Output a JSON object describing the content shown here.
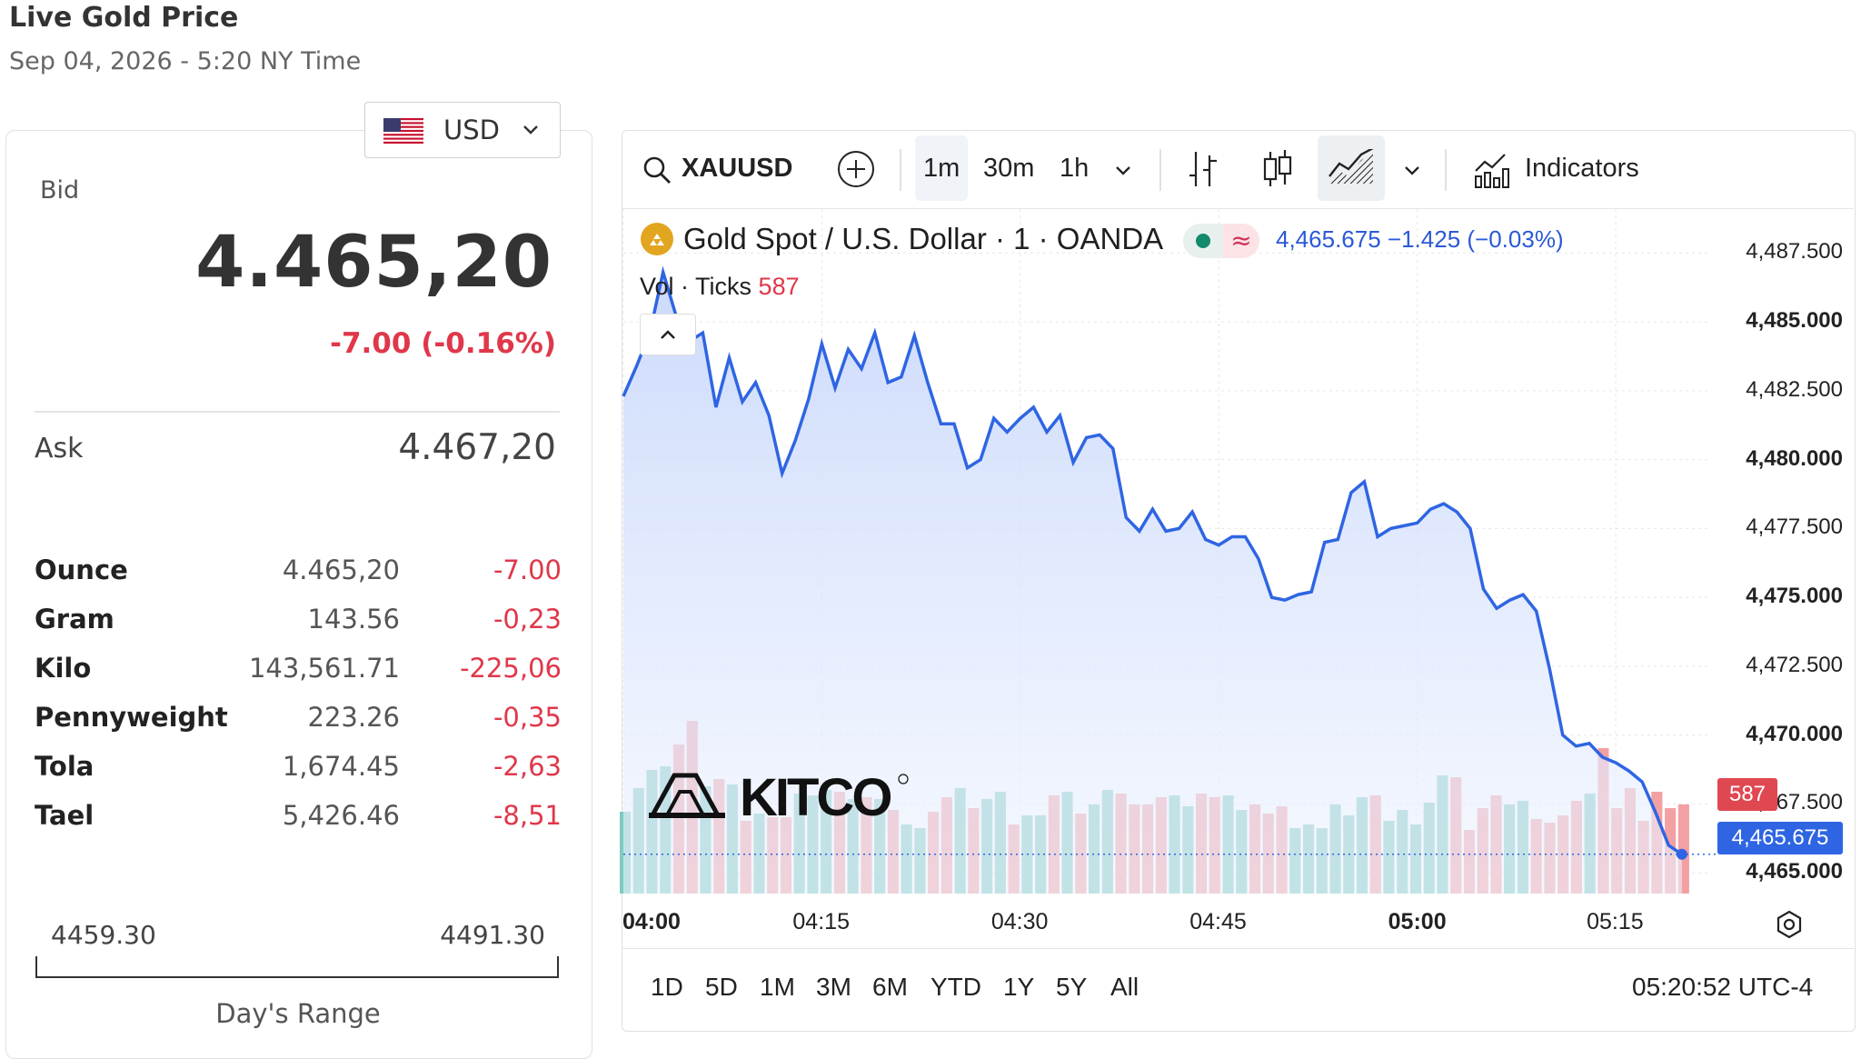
{
  "page": {
    "title": "Live Gold Price",
    "subtitle": "Sep 04, 2026 - 5:20 NY Time"
  },
  "currency": {
    "selected": "USD",
    "flag_icon": "us-flag-icon"
  },
  "quote": {
    "bid_label": "Bid",
    "bid": "4.465,20",
    "change": "-7.00 (-0.16%)",
    "ask_label": "Ask",
    "ask": "4.467,20",
    "down_color": "#e0374a"
  },
  "units": [
    {
      "name": "Ounce",
      "price": "4.465,20",
      "change": "-7.00"
    },
    {
      "name": "Gram",
      "price": "143.56",
      "change": "-0,23"
    },
    {
      "name": "Kilo",
      "price": "143,561.71",
      "change": "-225,06"
    },
    {
      "name": "Pennyweight",
      "price": "223.26",
      "change": "-0,35"
    },
    {
      "name": "Tola",
      "price": "1,674.45",
      "change": "-2,63"
    },
    {
      "name": "Tael",
      "price": "5,426.46",
      "change": "-8,51"
    }
  ],
  "day_range": {
    "low": "4459.30",
    "high": "4491.30",
    "label": "Day's Range"
  },
  "toolbar": {
    "symbol": "XAUUSD",
    "intervals": [
      "1m",
      "30m",
      "1h"
    ],
    "active_interval": "1m",
    "indicators_label": "Indicators"
  },
  "legend": {
    "title": "Gold Spot / U.S. Dollar · 1 · OANDA",
    "last": "4,465.675",
    "change": "−1.425 (−0.03%)",
    "vol_label": "Vol · Ticks",
    "vol_value": "587",
    "line_color": "#2f65e3"
  },
  "ranges": [
    "1D",
    "5D",
    "1M",
    "3M",
    "6M",
    "YTD",
    "1Y",
    "5Y",
    "All"
  ],
  "clock": "05:20:52 UTC-4",
  "logo_text": "KITCO",
  "chart_data": {
    "type": "line",
    "series_main": {
      "name": "XAUUSD",
      "color": "#2f65e3"
    },
    "x_ticks": [
      "04:00",
      "04:15",
      "04:30",
      "04:45",
      "05:00",
      "05:15"
    ],
    "x_ticks_bold": [
      "04:00",
      "05:00"
    ],
    "y_ticks": [
      "4,487.500",
      "4,485.000",
      "4,482.500",
      "4,480.000",
      "4,477.500",
      "4,475.000",
      "4,472.500",
      "4,470.000",
      "4,467.500",
      "4,465.000"
    ],
    "y_ticks_bold": [
      "4,485.000",
      "4,480.000",
      "4,475.000",
      "4,470.000",
      "4,465.000"
    ],
    "ylim": [
      4464.25,
      4488.5
    ],
    "x_range_minutes": [
      0,
      82
    ],
    "prices": [
      4482.3,
      4483.4,
      4484.6,
      4486.8,
      4485.2,
      4484.3,
      4484.6,
      4481.9,
      4483.7,
      4482.1,
      4482.8,
      4481.6,
      4479.5,
      4480.7,
      4482.2,
      4484.2,
      4482.6,
      4484.0,
      4483.3,
      4484.6,
      4482.8,
      4483.0,
      4484.5,
      4482.8,
      4481.3,
      4481.3,
      4479.7,
      4480.0,
      4481.5,
      4481.0,
      4481.5,
      4481.9,
      4481.0,
      4481.6,
      4479.9,
      4480.8,
      4480.9,
      4480.4,
      4477.9,
      4477.4,
      4478.2,
      4477.4,
      4477.5,
      4478.1,
      4477.1,
      4476.9,
      4477.2,
      4477.2,
      4476.4,
      4475.0,
      4474.9,
      4475.1,
      4475.2,
      4477.0,
      4477.1,
      4478.8,
      4479.2,
      4477.2,
      4477.5,
      4477.6,
      4477.7,
      4478.2,
      4478.4,
      4478.1,
      4477.5,
      4475.3,
      4474.6,
      4474.9,
      4475.1,
      4474.5,
      4472.4,
      4470.0,
      4469.6,
      4469.7,
      4469.2,
      4469.0,
      4468.7,
      4468.3,
      4467.2,
      4466.0,
      4465.675
    ],
    "volumes": [
      45,
      58,
      68,
      70,
      82,
      95,
      59,
      63,
      60,
      40,
      44,
      42,
      42,
      55,
      54,
      57,
      56,
      52,
      53,
      52,
      46,
      38,
      36,
      45,
      53,
      58,
      47,
      52,
      56,
      38,
      43,
      43,
      54,
      56,
      44,
      49,
      57,
      55,
      49,
      49,
      53,
      54,
      48,
      55,
      53,
      54,
      46,
      49,
      44,
      48,
      36,
      38,
      36,
      49,
      43,
      53,
      54,
      40,
      46,
      38,
      50,
      65,
      64,
      35,
      47,
      54,
      49,
      51,
      41,
      39,
      43,
      51,
      55,
      80,
      47,
      58,
      40,
      56,
      47,
      49
    ],
    "vol_up_color": "#7ecbbf",
    "vol_down_color": "#f3a0a3",
    "grid": true,
    "axis_position": "right"
  }
}
